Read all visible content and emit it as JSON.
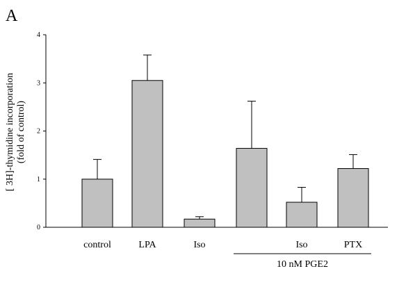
{
  "panel_letter": "A",
  "chart_data": {
    "type": "bar",
    "categories": [
      "control",
      "LPA",
      "Iso",
      "",
      "Iso",
      "PTX"
    ],
    "values": [
      1.0,
      3.05,
      0.17,
      1.64,
      0.52,
      1.22
    ],
    "errors": [
      0.41,
      0.53,
      0.05,
      0.98,
      0.31,
      0.29
    ],
    "ylabel_line1": "[ 3H]-thymidine incorporation",
    "ylabel_line2": "(fold of control)",
    "yticks": [
      0,
      1,
      2,
      3,
      4
    ],
    "ylim": [
      0,
      4
    ],
    "group_label": "10 nM PGE2",
    "group_span": [
      3,
      5
    ],
    "bar_color": "#c0c0c0",
    "grid": false,
    "legend": "none"
  }
}
